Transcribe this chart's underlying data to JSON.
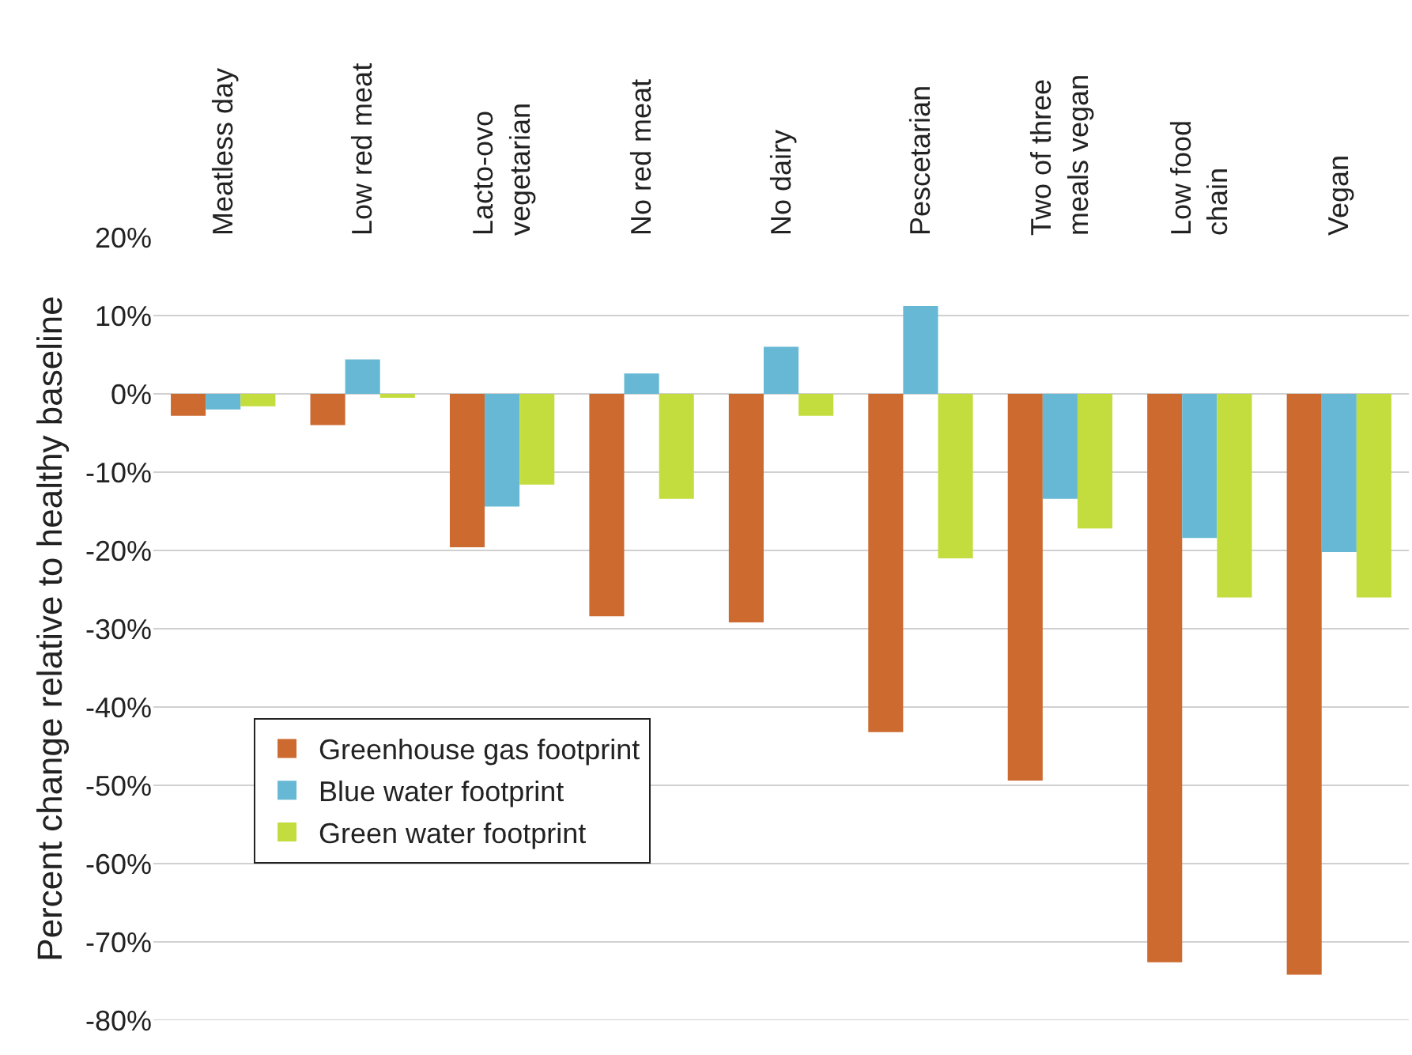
{
  "chart_data": {
    "type": "bar",
    "ylabel": "Percent change relative to healthy baseline",
    "categories": [
      "Meatless day",
      "Low red meat",
      "Lacto-ovo vegetarian",
      "No red meat",
      "No dairy",
      "Pescetarian",
      "Two of three meals vegan",
      "Low food chain",
      "Vegan"
    ],
    "series": [
      {
        "name": "Greenhouse gas footprint",
        "color": "#cc6a30",
        "values": [
          -2.8,
          -4,
          -19.6,
          -28.4,
          -29.2,
          -43.2,
          -49.4,
          -72.6,
          -74.2
        ]
      },
      {
        "name": "Blue water footprint",
        "color": "#67b8d4",
        "values": [
          -2,
          4.4,
          -14.4,
          2.6,
          6,
          11.2,
          -13.4,
          -18.4,
          -20.2
        ]
      },
      {
        "name": "Green water footprint",
        "color": "#c3dd3f",
        "values": [
          -1.6,
          -0.5,
          -11.6,
          -13.4,
          -2.8,
          -21,
          -17.2,
          -26,
          -26
        ]
      }
    ],
    "ylim": [
      -80,
      20
    ],
    "yticks": [
      {
        "value": 20,
        "label": "20%"
      },
      {
        "value": 10,
        "label": "10%"
      },
      {
        "value": 0,
        "label": "0%"
      },
      {
        "value": -10,
        "label": "-10%"
      },
      {
        "value": -20,
        "label": "-20%"
      },
      {
        "value": -30,
        "label": "-30%"
      },
      {
        "value": -40,
        "label": "-40%"
      },
      {
        "value": -50,
        "label": "-50%"
      },
      {
        "value": -60,
        "label": "-60%"
      },
      {
        "value": -70,
        "label": "-70%"
      },
      {
        "value": -80,
        "label": "-80%"
      }
    ],
    "grid": "y",
    "legend": "bottom left"
  }
}
